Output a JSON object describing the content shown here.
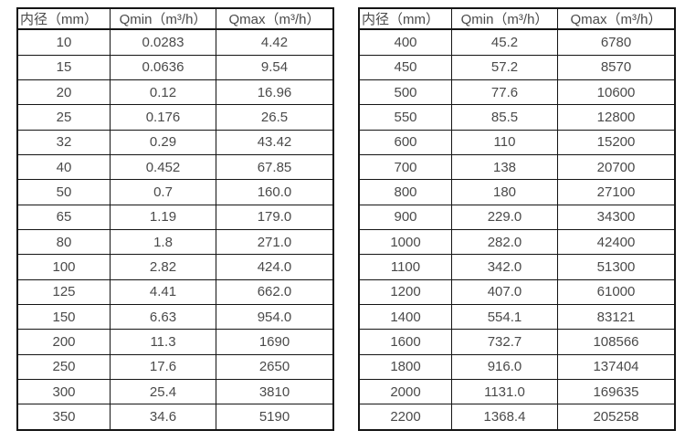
{
  "page": {
    "background_color": "#ffffff",
    "border_color": "#141414",
    "text_color": "#4a4a4a"
  },
  "column_keys": [
    "diameter",
    "qmin",
    "qmax"
  ],
  "tables": [
    {
      "name": "small-diameter-flow-table",
      "headers": [
        "内径（mm）",
        "Qmin（m³/h）",
        "Qmax（m³/h）"
      ],
      "rows": [
        [
          "10",
          "0.0283",
          "4.42"
        ],
        [
          "15",
          "0.0636",
          "9.54"
        ],
        [
          "20",
          "0.12",
          "16.96"
        ],
        [
          "25",
          "0.176",
          "26.5"
        ],
        [
          "32",
          "0.29",
          "43.42"
        ],
        [
          "40",
          "0.452",
          "67.85"
        ],
        [
          "50",
          "0.7",
          "160.0"
        ],
        [
          "65",
          "1.19",
          "179.0"
        ],
        [
          "80",
          "1.8",
          "271.0"
        ],
        [
          "100",
          "2.82",
          "424.0"
        ],
        [
          "125",
          "4.41",
          "662.0"
        ],
        [
          "150",
          "6.63",
          "954.0"
        ],
        [
          "200",
          "11.3",
          "1690"
        ],
        [
          "250",
          "17.6",
          "2650"
        ],
        [
          "300",
          "25.4",
          "3810"
        ],
        [
          "350",
          "34.6",
          "5190"
        ]
      ]
    },
    {
      "name": "large-diameter-flow-table",
      "headers": [
        "内径（mm）",
        "Qmin（m³/h）",
        "Qmax（m³/h）"
      ],
      "rows": [
        [
          "400",
          "45.2",
          "6780"
        ],
        [
          "450",
          "57.2",
          "8570"
        ],
        [
          "500",
          "77.6",
          "10600"
        ],
        [
          "550",
          "85.5",
          "12800"
        ],
        [
          "600",
          "110",
          "15200"
        ],
        [
          "700",
          "138",
          "20700"
        ],
        [
          "800",
          "180",
          "27100"
        ],
        [
          "900",
          "229.0",
          "34300"
        ],
        [
          "1000",
          "282.0",
          "42400"
        ],
        [
          "1100",
          "342.0",
          "51300"
        ],
        [
          "1200",
          "407.0",
          "61000"
        ],
        [
          "1400",
          "554.1",
          "83121"
        ],
        [
          "1600",
          "732.7",
          "108566"
        ],
        [
          "1800",
          "916.0",
          "137404"
        ],
        [
          "2000",
          "1131.0",
          "169635"
        ],
        [
          "2200",
          "1368.4",
          "205258"
        ]
      ]
    }
  ]
}
